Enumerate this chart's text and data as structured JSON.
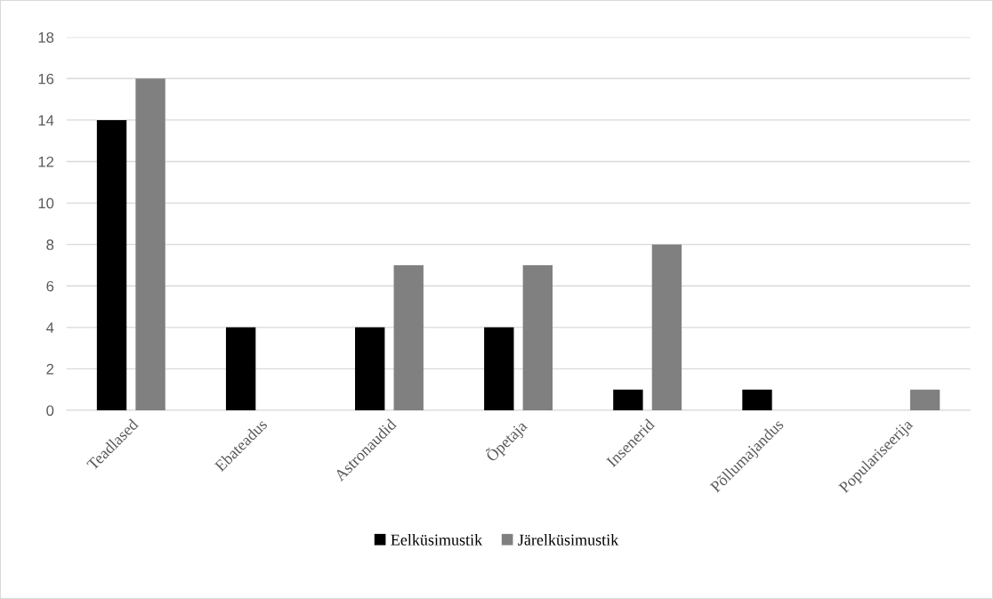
{
  "chart_data": {
    "type": "bar",
    "categories": [
      "Teadlased",
      "Ebateadus",
      "Astronaudid",
      "Õpetaja",
      "Insenerid",
      "Põllumajandus",
      "Populariseerija"
    ],
    "series": [
      {
        "name": "Eelküsimustik",
        "color": "#000000",
        "values": [
          14,
          4,
          4,
          4,
          1,
          1,
          0
        ]
      },
      {
        "name": "Järelküsimustik",
        "color": "#808080",
        "values": [
          16,
          0,
          7,
          7,
          8,
          0,
          1
        ]
      }
    ],
    "ylim": [
      0,
      18
    ],
    "yticks": [
      0,
      2,
      4,
      6,
      8,
      10,
      12,
      14,
      16,
      18
    ],
    "grid": "y",
    "legend": "bottom"
  }
}
